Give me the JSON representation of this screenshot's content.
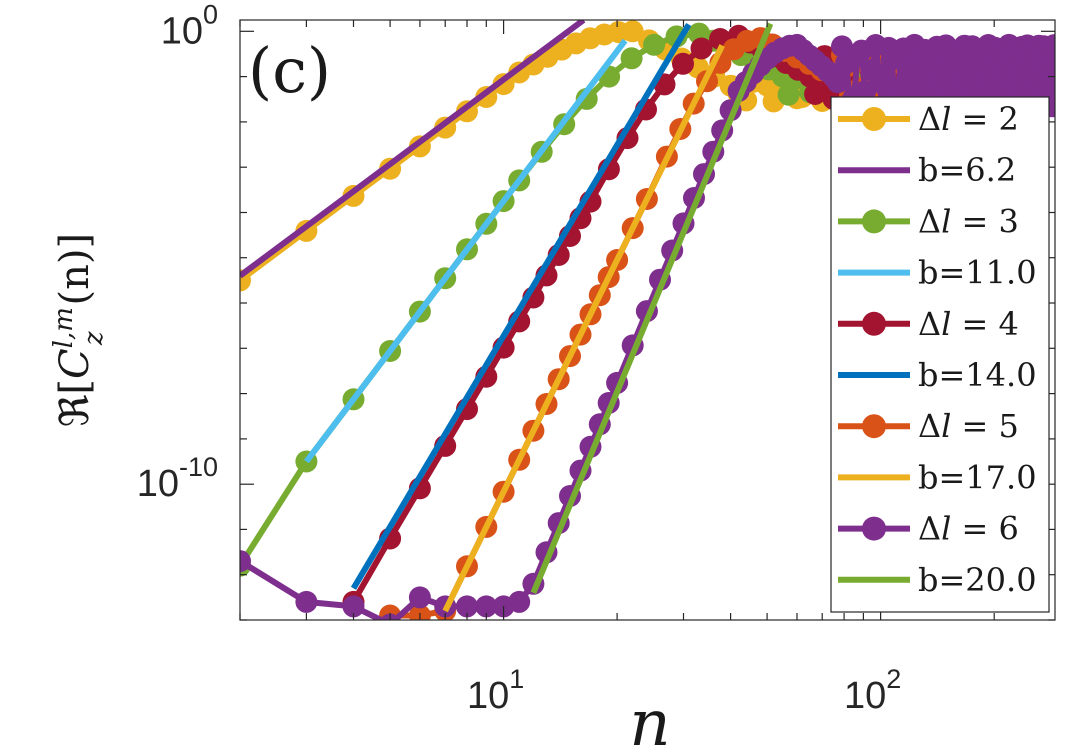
{
  "chart_data": {
    "type": "line",
    "panel_label": "(c)",
    "xscale": "log",
    "yscale": "log",
    "xlim": [
      2,
      290
    ],
    "ylim_exp": [
      -13,
      0.25
    ],
    "xlabel": "n",
    "ylabel": "ℜ[C_z^{l,m}(n)]",
    "ylabel_parts": {
      "prefix": "ℜ[",
      "base": "C",
      "sup": "l,m",
      "sub": "z",
      "suffix": "(n)]"
    },
    "x_ticks": [
      {
        "value": 10,
        "base": "10",
        "exp": "1"
      },
      {
        "value": 100,
        "base": "10",
        "exp": "2"
      }
    ],
    "y_ticks": [
      {
        "value_exp": 0,
        "base": "10",
        "exp": "0"
      },
      {
        "value_exp": -10,
        "base": "10",
        "exp": "-10"
      }
    ],
    "legend_position": "top-right",
    "legend": [
      {
        "kind": "data",
        "symbol": "Δ",
        "var": "l",
        "rel": " = ",
        "num": "2",
        "color": "#EDB120"
      },
      {
        "kind": "fit",
        "text": "b=6.2",
        "color": "#7E2F8E"
      },
      {
        "kind": "data",
        "symbol": "Δ",
        "var": "l",
        "rel": " = ",
        "num": "3",
        "color": "#77AC30"
      },
      {
        "kind": "fit",
        "text": "b=11.0",
        "color": "#4DBEEE"
      },
      {
        "kind": "data",
        "symbol": "Δ",
        "var": "l",
        "rel": " = ",
        "num": "4",
        "color": "#A2142F"
      },
      {
        "kind": "fit",
        "text": "b=14.0",
        "color": "#0072BD"
      },
      {
        "kind": "data",
        "symbol": "Δ",
        "var": "l",
        "rel": " = ",
        "num": "5",
        "color": "#D95319"
      },
      {
        "kind": "fit",
        "text": "b=17.0",
        "color": "#EDB120"
      },
      {
        "kind": "data",
        "symbol": "Δ",
        "var": "l",
        "rel": " = ",
        "num": "6",
        "color": "#7E2F8E"
      },
      {
        "kind": "fit",
        "text": "b=20.0",
        "color": "#77AC30"
      }
    ],
    "data_series": [
      {
        "name": "Δl = 2",
        "color": "#EDB120",
        "rise": {
          "x0": 2,
          "y0_exp": -5.5,
          "slope_exp_per_decade": 6.2,
          "x_end": 11
        },
        "peak": {
          "x": 22,
          "y_exp": 0.0
        },
        "plateau": {
          "x_start": 40,
          "level_exp": -1.2,
          "osc_exp": 0.35
        }
      },
      {
        "name": "Δl = 3",
        "color": "#77AC30",
        "low_points": [
          [
            2,
            -11.8
          ],
          [
            3,
            -9.5
          ]
        ],
        "rise": {
          "x0": 3,
          "y0_exp": -9.5,
          "slope_exp_per_decade": 11.0,
          "x_end": 11
        },
        "peak": {
          "x": 33,
          "y_exp": -0.05
        },
        "plateau": {
          "x_start": 55,
          "level_exp": -1.0,
          "osc_exp": 0.4
        }
      },
      {
        "name": "Δl = 4",
        "color": "#A2142F",
        "low_points": [
          [
            4,
            -12.6
          ]
        ],
        "rise": {
          "x0": 5,
          "y0_exp": -11.2,
          "slope_exp_per_decade": 14.0,
          "x_end": 17
        },
        "peak": {
          "x": 42,
          "y_exp": -0.1
        },
        "plateau": {
          "x_start": 65,
          "level_exp": -1.0,
          "osc_exp": 0.5
        }
      },
      {
        "name": "Δl = 5",
        "color": "#D95319",
        "low_points": [
          [
            5,
            -12.9
          ],
          [
            6,
            -12.9
          ]
        ],
        "rise": {
          "x0": 7,
          "y0_exp": -12.8,
          "slope_exp_per_decade": 17.0,
          "x_end": 25
        },
        "peak": {
          "x": 48,
          "y_exp": -0.15
        },
        "plateau": {
          "x_start": 75,
          "level_exp": -1.0,
          "osc_exp": 0.5
        }
      },
      {
        "name": "Δl = 6",
        "color": "#7E2F8E",
        "low_points": [
          [
            2,
            -11.7
          ],
          [
            3,
            -12.6
          ],
          [
            4,
            -12.7
          ],
          [
            5,
            -13.1
          ],
          [
            6,
            -12.5
          ],
          [
            7,
            -12.7
          ],
          [
            8,
            -12.7
          ],
          [
            9,
            -12.7
          ],
          [
            10,
            -12.7
          ],
          [
            11,
            -12.6
          ]
        ],
        "rise": {
          "x0": 12,
          "y0_exp": -12.2,
          "slope_exp_per_decade": 20.0,
          "x_end": 42
        },
        "peak": {
          "x": 60,
          "y_exp": -0.3
        },
        "plateau": {
          "x_start": 75,
          "level_exp": -1.0,
          "osc_exp": 0.7
        }
      }
    ],
    "fit_lines": [
      {
        "name": "b=6.2",
        "color": "#7E2F8E",
        "slope_exp_per_decade": 6.2,
        "x0": 2,
        "y0_exp": -5.4,
        "x_end": 16.3
      },
      {
        "name": "b=11.0",
        "color": "#4DBEEE",
        "slope_exp_per_decade": 11.0,
        "x0": 3,
        "y0_exp": -9.5,
        "x_end": 21
      },
      {
        "name": "b=14.0",
        "color": "#0072BD",
        "slope_exp_per_decade": 14.0,
        "x0": 4,
        "y0_exp": -12.3,
        "x_end": 31
      },
      {
        "name": "b=17.0",
        "color": "#EDB120",
        "slope_exp_per_decade": 17.0,
        "x0": 7,
        "y0_exp": -12.8,
        "x_end": 38
      },
      {
        "name": "b=20.0",
        "color": "#77AC30",
        "slope_exp_per_decade": 20.0,
        "x0": 12,
        "y0_exp": -12.4,
        "x_end": 51
      }
    ]
  }
}
